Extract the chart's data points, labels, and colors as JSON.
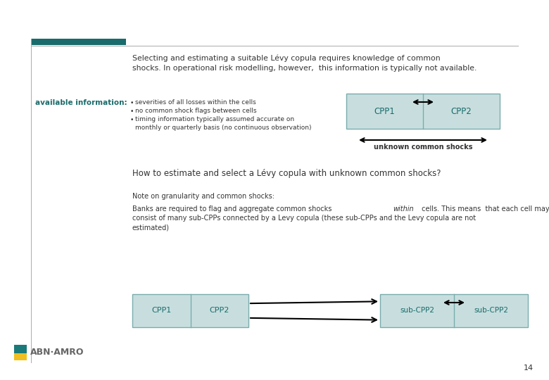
{
  "slide_bg": "#ffffff",
  "teal_bar_color": "#1a6b6b",
  "box_fill": "#c8dede",
  "box_edge": "#7aacac",
  "text_color": "#333333",
  "teal_text": "#1a6b6b",
  "title_text_l1": "Selecting and estimating a suitable Lévy copula requires knowledge of common",
  "title_text_l2": "shocks. In operational risk modelling, however,  this information is typically not available.",
  "avail_label": "available information:",
  "bullet1": "severities of all losses within the cells",
  "bullet2": "no common shock flags between cells",
  "bullet3a": "timing information typically assumed accurate on",
  "bullet3b": "monthly or quarterly basis (no continuous observation)",
  "cpp1_label": "CPP1",
  "cpp2_label": "CPP2",
  "unknown_label": "unknown common shocks",
  "question": "How to estimate and select a Lévy copula with unknown common shocks?",
  "note_label": "Note on granularity and common shocks:",
  "banks_pre": "Banks are required to flag and aggregate common shocks ",
  "banks_italic": "within",
  "banks_post": " cells. This means  that each cell may",
  "banks_l2": "consist of many sub-CPPs connected by a Levy copula (these sub-CPPs and the Levy copula are not",
  "banks_l3": "estimated)",
  "subcpp_label": "sub-CPP2",
  "page_num": "14",
  "logo_text": "ABN·AMRO"
}
